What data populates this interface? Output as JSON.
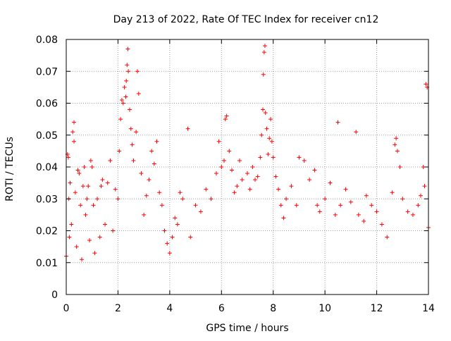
{
  "chart_data": {
    "type": "scatter",
    "title": "Day 213 of 2022, Rate Of TEC Index for receiver cn12",
    "xlabel": "GPS time / hours",
    "ylabel": "ROTI / TECUs",
    "xlim": [
      0,
      14
    ],
    "ylim": [
      0,
      0.08
    ],
    "x_ticks": [
      0,
      2,
      4,
      6,
      8,
      10,
      12,
      14
    ],
    "x_tick_labels": [
      "0",
      "2",
      "4",
      "6",
      "8",
      "10",
      "12",
      "14"
    ],
    "y_ticks": [
      0,
      0.01,
      0.02,
      0.03,
      0.04,
      0.05,
      0.06,
      0.07,
      0.08
    ],
    "y_tick_labels": [
      "0",
      "0.01",
      "0.02",
      "0.03",
      "0.04",
      "0.05",
      "0.06",
      "0.07",
      "0.08"
    ],
    "grid": true,
    "marker": "+",
    "marker_color": "#ff0000",
    "series": [
      {
        "name": "",
        "points": [
          [
            0.0,
            0.012
          ],
          [
            0.05,
            0.044
          ],
          [
            0.08,
            0.043
          ],
          [
            0.1,
            0.03
          ],
          [
            0.12,
            0.018
          ],
          [
            0.15,
            0.035
          ],
          [
            0.2,
            0.022
          ],
          [
            0.25,
            0.051
          ],
          [
            0.3,
            0.054
          ],
          [
            0.3,
            0.048
          ],
          [
            0.35,
            0.032
          ],
          [
            0.4,
            0.015
          ],
          [
            0.45,
            0.039
          ],
          [
            0.5,
            0.038
          ],
          [
            0.55,
            0.028
          ],
          [
            0.6,
            0.011
          ],
          [
            0.65,
            0.034
          ],
          [
            0.7,
            0.04
          ],
          [
            0.75,
            0.025
          ],
          [
            0.8,
            0.03
          ],
          [
            0.85,
            0.034
          ],
          [
            0.9,
            0.017
          ],
          [
            0.95,
            0.042
          ],
          [
            1.0,
            0.04
          ],
          [
            1.05,
            0.028
          ],
          [
            1.1,
            0.013
          ],
          [
            1.2,
            0.03
          ],
          [
            1.3,
            0.018
          ],
          [
            1.35,
            0.034
          ],
          [
            1.4,
            0.036
          ],
          [
            1.5,
            0.022
          ],
          [
            1.6,
            0.035
          ],
          [
            1.7,
            0.042
          ],
          [
            1.8,
            0.02
          ],
          [
            1.9,
            0.033
          ],
          [
            2.0,
            0.03
          ],
          [
            2.05,
            0.045
          ],
          [
            2.1,
            0.055
          ],
          [
            2.15,
            0.061
          ],
          [
            2.2,
            0.06
          ],
          [
            2.25,
            0.065
          ],
          [
            2.3,
            0.062
          ],
          [
            2.32,
            0.067
          ],
          [
            2.35,
            0.072
          ],
          [
            2.38,
            0.077
          ],
          [
            2.4,
            0.07
          ],
          [
            2.45,
            0.058
          ],
          [
            2.5,
            0.052
          ],
          [
            2.55,
            0.047
          ],
          [
            2.6,
            0.042
          ],
          [
            2.7,
            0.051
          ],
          [
            2.75,
            0.07
          ],
          [
            2.8,
            0.063
          ],
          [
            2.9,
            0.038
          ],
          [
            3.0,
            0.025
          ],
          [
            3.1,
            0.031
          ],
          [
            3.2,
            0.036
          ],
          [
            3.3,
            0.045
          ],
          [
            3.4,
            0.041
          ],
          [
            3.5,
            0.048
          ],
          [
            3.6,
            0.032
          ],
          [
            3.7,
            0.028
          ],
          [
            3.8,
            0.02
          ],
          [
            3.9,
            0.016
          ],
          [
            4.0,
            0.013
          ],
          [
            4.1,
            0.018
          ],
          [
            4.2,
            0.024
          ],
          [
            4.3,
            0.022
          ],
          [
            4.4,
            0.032
          ],
          [
            4.5,
            0.03
          ],
          [
            4.7,
            0.052
          ],
          [
            4.8,
            0.018
          ],
          [
            5.0,
            0.028
          ],
          [
            5.2,
            0.026
          ],
          [
            5.4,
            0.033
          ],
          [
            5.6,
            0.03
          ],
          [
            5.8,
            0.038
          ],
          [
            5.9,
            0.048
          ],
          [
            6.0,
            0.04
          ],
          [
            6.1,
            0.042
          ],
          [
            6.15,
            0.055
          ],
          [
            6.2,
            0.056
          ],
          [
            6.3,
            0.045
          ],
          [
            6.4,
            0.039
          ],
          [
            6.5,
            0.032
          ],
          [
            6.6,
            0.034
          ],
          [
            6.7,
            0.042
          ],
          [
            6.8,
            0.036
          ],
          [
            7.0,
            0.038
          ],
          [
            7.1,
            0.033
          ],
          [
            7.2,
            0.04
          ],
          [
            7.3,
            0.036
          ],
          [
            7.4,
            0.037
          ],
          [
            7.5,
            0.043
          ],
          [
            7.55,
            0.05
          ],
          [
            7.6,
            0.058
          ],
          [
            7.62,
            0.069
          ],
          [
            7.65,
            0.076
          ],
          [
            7.68,
            0.078
          ],
          [
            7.7,
            0.057
          ],
          [
            7.75,
            0.052
          ],
          [
            7.8,
            0.044
          ],
          [
            7.85,
            0.049
          ],
          [
            7.9,
            0.055
          ],
          [
            7.95,
            0.048
          ],
          [
            8.0,
            0.043
          ],
          [
            8.1,
            0.037
          ],
          [
            8.2,
            0.033
          ],
          [
            8.3,
            0.028
          ],
          [
            8.4,
            0.024
          ],
          [
            8.5,
            0.03
          ],
          [
            8.7,
            0.034
          ],
          [
            8.9,
            0.028
          ],
          [
            9.0,
            0.043
          ],
          [
            9.2,
            0.042
          ],
          [
            9.4,
            0.036
          ],
          [
            9.6,
            0.039
          ],
          [
            9.7,
            0.028
          ],
          [
            9.8,
            0.026
          ],
          [
            10.0,
            0.03
          ],
          [
            10.2,
            0.035
          ],
          [
            10.4,
            0.025
          ],
          [
            10.5,
            0.054
          ],
          [
            10.6,
            0.028
          ],
          [
            10.8,
            0.033
          ],
          [
            11.0,
            0.029
          ],
          [
            11.2,
            0.051
          ],
          [
            11.3,
            0.025
          ],
          [
            11.5,
            0.023
          ],
          [
            11.6,
            0.031
          ],
          [
            11.8,
            0.028
          ],
          [
            12.0,
            0.026
          ],
          [
            12.2,
            0.022
          ],
          [
            12.4,
            0.018
          ],
          [
            12.6,
            0.032
          ],
          [
            12.7,
            0.047
          ],
          [
            12.75,
            0.049
          ],
          [
            12.8,
            0.045
          ],
          [
            12.9,
            0.04
          ],
          [
            13.0,
            0.03
          ],
          [
            13.2,
            0.026
          ],
          [
            13.4,
            0.025
          ],
          [
            13.6,
            0.028
          ],
          [
            13.7,
            0.031
          ],
          [
            13.8,
            0.04
          ],
          [
            13.85,
            0.034
          ],
          [
            13.9,
            0.066
          ],
          [
            13.95,
            0.065
          ],
          [
            14.0,
            0.021
          ]
        ]
      }
    ]
  }
}
